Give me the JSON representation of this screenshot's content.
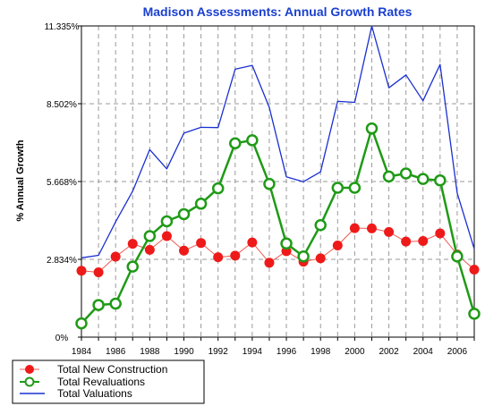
{
  "chart_data": {
    "type": "line",
    "title": "Madison Assessments: Annual Growth Rates",
    "xlabel": "",
    "ylabel": "% Annual Growth",
    "x": [
      1984,
      1985,
      1986,
      1987,
      1988,
      1989,
      1990,
      1991,
      1992,
      1993,
      1994,
      1995,
      1996,
      1997,
      1998,
      1999,
      2000,
      2001,
      2002,
      2003,
      2004,
      2005,
      2006,
      2007
    ],
    "xticks": [
      "1984",
      "1986",
      "1988",
      "1990",
      "1992",
      "1994",
      "1996",
      "1998",
      "2000",
      "2002",
      "2004",
      "2006"
    ],
    "xtick_values": [
      1984,
      1986,
      1988,
      1990,
      1992,
      1994,
      1996,
      1998,
      2000,
      2002,
      2004,
      2006
    ],
    "yticks": [
      "0%",
      "2.834%",
      "5.668%",
      "8.502%",
      "11.335%"
    ],
    "ytick_values": [
      0,
      2.834,
      5.668,
      8.502,
      11.335
    ],
    "xlim": [
      1984,
      2007
    ],
    "ylim": [
      0,
      11.335
    ],
    "grid": true,
    "legend": "bottom-left",
    "series": [
      {
        "name": "Total New Construction",
        "color": "#ee1a1a",
        "line_color": "#ee5a50",
        "marker": "filled-circle",
        "values": [
          2.42,
          2.36,
          2.93,
          3.4,
          3.18,
          3.68,
          3.15,
          3.43,
          2.91,
          2.97,
          3.45,
          2.71,
          3.13,
          2.75,
          2.87,
          3.34,
          3.97,
          3.96,
          3.83,
          3.48,
          3.5,
          3.78,
          3.01,
          2.46
        ]
      },
      {
        "name": "Total Revaluations",
        "color": "#1f9a16",
        "marker": "open-circle",
        "values": [
          0.5,
          1.17,
          1.22,
          2.57,
          3.68,
          4.22,
          4.48,
          4.86,
          5.42,
          7.06,
          7.17,
          5.58,
          3.41,
          2.94,
          4.08,
          5.44,
          5.44,
          7.6,
          5.85,
          5.96,
          5.76,
          5.71,
          2.94,
          0.85
        ]
      },
      {
        "name": "Total Valuations",
        "color": "#1a30d0",
        "marker": "none",
        "values": [
          2.89,
          2.98,
          4.2,
          5.32,
          6.83,
          6.13,
          7.43,
          7.64,
          7.63,
          9.76,
          9.9,
          8.36,
          5.84,
          5.66,
          6.02,
          8.59,
          8.55,
          11.33,
          9.08,
          9.55,
          8.61,
          9.93,
          5.25,
          3.21
        ]
      }
    ]
  }
}
